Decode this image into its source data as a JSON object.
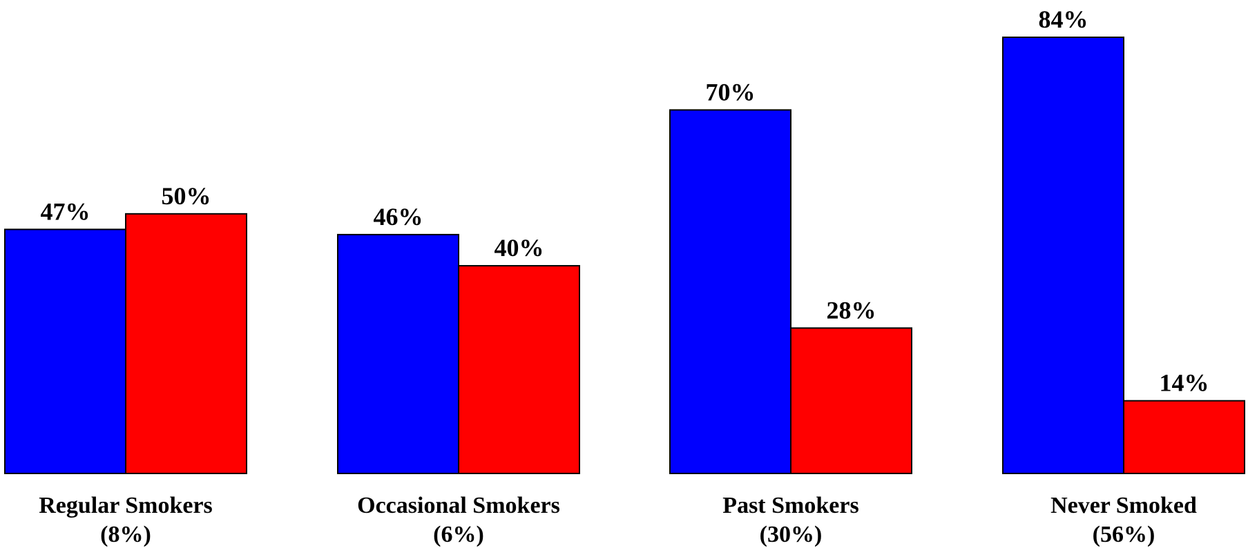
{
  "chart_data": {
    "type": "bar",
    "title": "",
    "xlabel": "",
    "ylabel": "",
    "ylim": [
      0,
      84
    ],
    "grid": false,
    "legend": "none",
    "categories": [
      {
        "line1": "Regular Smokers",
        "line2": "(8%)"
      },
      {
        "line1": "Occasional Smokers",
        "line2": "(6%)"
      },
      {
        "line1": "Past Smokers",
        "line2": "(30%)"
      },
      {
        "line1": "Never Smoked",
        "line2": "(56%)"
      }
    ],
    "series": [
      {
        "color": "#0000ff",
        "values": [
          47,
          46,
          70,
          84
        ],
        "labels": [
          "47%",
          "46%",
          "70%",
          "84%"
        ]
      },
      {
        "color": "#ff0000",
        "values": [
          50,
          40,
          28,
          14
        ],
        "labels": [
          "50%",
          "40%",
          "28%",
          "14%"
        ]
      }
    ]
  }
}
